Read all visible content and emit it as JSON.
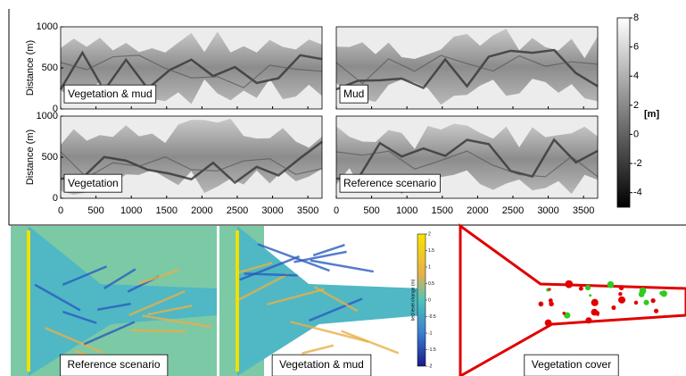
{
  "top": {
    "y_label": "Distance (m)",
    "xlim": [
      0,
      3700
    ],
    "ylim": [
      0,
      1000
    ],
    "xticks": [
      0,
      500,
      1000,
      1500,
      2000,
      2500,
      3000,
      3500
    ],
    "yticks": [
      0,
      500,
      1000
    ],
    "panels": [
      {
        "label": "Vegetation & mud"
      },
      {
        "label": "Mud"
      },
      {
        "label": "Vegetation"
      },
      {
        "label": "Reference scenario"
      }
    ],
    "colorbar": {
      "label": "[m]",
      "lim": [
        -5,
        8
      ],
      "ticks": [
        8,
        6,
        4,
        2,
        0,
        -2,
        -4
      ]
    }
  },
  "bottom": {
    "panels": [
      {
        "label": "Reference scenario"
      },
      {
        "label": "Vegetation & mud"
      },
      {
        "label": "Vegetation cover"
      }
    ],
    "colorbar": {
      "label": "bed level change (m)",
      "lim": [
        -2,
        2
      ],
      "ticks": [
        2,
        1.5,
        1,
        0.5,
        0,
        -0.5,
        -1,
        -1.5,
        -2
      ]
    }
  }
}
